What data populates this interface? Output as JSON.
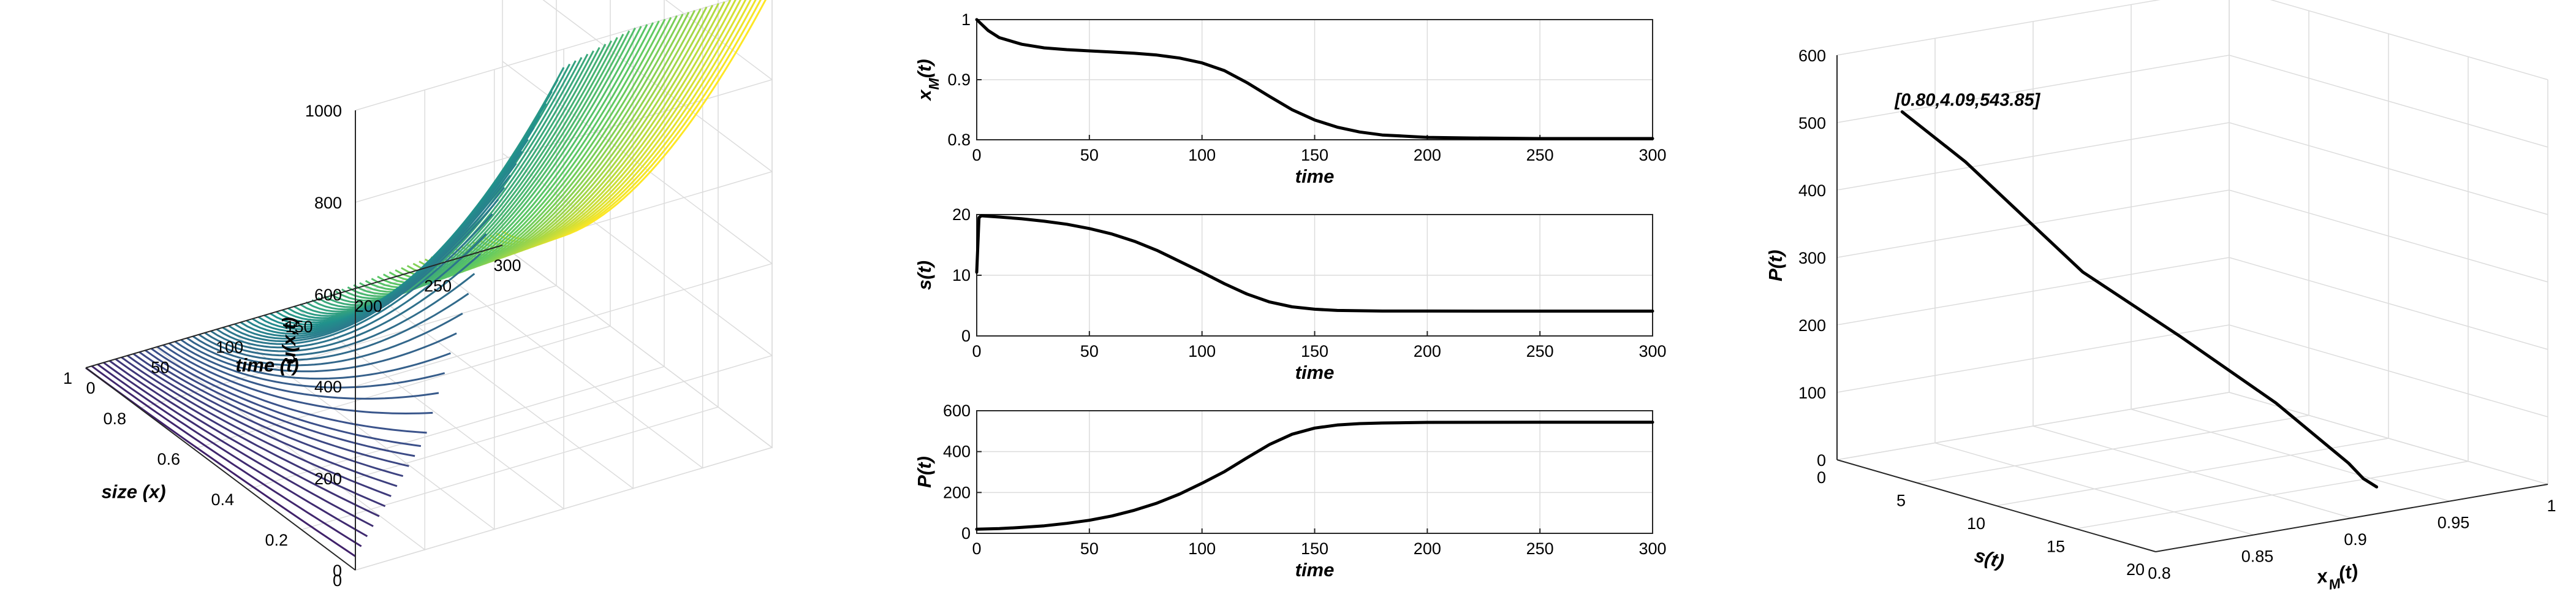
{
  "chart_data": [
    {
      "type": "surface",
      "xlabel": "size (x)",
      "ylabel": "time (t)",
      "zlabel": "u(x,t)",
      "x_ticks": [
        "0",
        "0.2",
        "0.4",
        "0.6",
        "0.8",
        "1"
      ],
      "y_ticks": [
        "0",
        "50",
        "100",
        "150",
        "200",
        "250",
        "300"
      ],
      "z_ticks": [
        "0",
        "200",
        "400",
        "600",
        "800",
        "1000"
      ],
      "xlim": [
        0,
        1
      ],
      "ylim": [
        0,
        300
      ],
      "zlim": [
        0,
        1000
      ],
      "grid": true,
      "colormap": [
        "#440154",
        "#3b528b",
        "#21918c",
        "#5ec962",
        "#fde725"
      ],
      "u_at_x0": {
        "t": [
          0,
          50,
          100,
          150,
          200,
          250,
          300
        ],
        "u": [
          30,
          240,
          700,
          960,
          1000,
          1000,
          1000
        ]
      },
      "u_at_x1": {
        "t": [
          0,
          50,
          100,
          150,
          200,
          250,
          300
        ],
        "u": [
          0,
          0,
          0,
          0,
          10,
          20,
          30
        ]
      }
    },
    {
      "type": "line",
      "xlabel": "time",
      "ylabel": "x_M(t)",
      "x_ticks": [
        "0",
        "50",
        "100",
        "150",
        "200",
        "250",
        "300"
      ],
      "y_ticks": [
        "0.8",
        "0.9",
        "1"
      ],
      "xlim": [
        0,
        300
      ],
      "ylim": [
        0.8,
        1
      ],
      "grid": true,
      "x": [
        0,
        5,
        10,
        20,
        30,
        40,
        50,
        60,
        70,
        80,
        90,
        100,
        110,
        120,
        130,
        140,
        150,
        160,
        170,
        180,
        190,
        200,
        220,
        250,
        300
      ],
      "y": [
        1.0,
        0.982,
        0.97,
        0.959,
        0.953,
        0.95,
        0.948,
        0.946,
        0.944,
        0.941,
        0.936,
        0.928,
        0.915,
        0.895,
        0.872,
        0.85,
        0.833,
        0.821,
        0.813,
        0.808,
        0.806,
        0.804,
        0.803,
        0.802,
        0.802
      ]
    },
    {
      "type": "line",
      "xlabel": "time",
      "ylabel": "s(t)",
      "x_ticks": [
        "0",
        "50",
        "100",
        "150",
        "200",
        "250",
        "300"
      ],
      "y_ticks": [
        "0",
        "10",
        "20"
      ],
      "xlim": [
        0,
        300
      ],
      "ylim": [
        0,
        20
      ],
      "grid": true,
      "x": [
        0,
        1,
        2,
        10,
        20,
        30,
        40,
        50,
        60,
        70,
        80,
        90,
        100,
        110,
        120,
        130,
        140,
        150,
        160,
        170,
        180,
        190,
        200,
        250,
        300
      ],
      "y": [
        10.5,
        19.5,
        19.8,
        19.6,
        19.3,
        18.9,
        18.4,
        17.7,
        16.8,
        15.6,
        14.1,
        12.3,
        10.5,
        8.6,
        6.9,
        5.6,
        4.8,
        4.4,
        4.2,
        4.15,
        4.1,
        4.1,
        4.1,
        4.09,
        4.09
      ]
    },
    {
      "type": "line",
      "xlabel": "time",
      "ylabel": "P(t)",
      "x_ticks": [
        "0",
        "50",
        "100",
        "150",
        "200",
        "250",
        "300"
      ],
      "y_ticks": [
        "0",
        "200",
        "400",
        "600"
      ],
      "xlim": [
        0,
        300
      ],
      "ylim": [
        0,
        600
      ],
      "grid": true,
      "x": [
        0,
        10,
        20,
        30,
        40,
        50,
        60,
        70,
        80,
        90,
        100,
        110,
        120,
        130,
        140,
        150,
        160,
        170,
        180,
        200,
        250,
        300
      ],
      "y": [
        20,
        23,
        29,
        37,
        49,
        64,
        85,
        113,
        148,
        192,
        245,
        302,
        370,
        435,
        485,
        515,
        530,
        537,
        540,
        543,
        543.8,
        543.85
      ]
    },
    {
      "type": "line3d",
      "xlabel": "x_M(t)",
      "ylabel": "s(t)",
      "zlabel": "P(t)",
      "x_ticks": [
        "0.8",
        "0.85",
        "0.9",
        "0.95",
        "1"
      ],
      "y_ticks": [
        "0",
        "5",
        "10",
        "15",
        "20"
      ],
      "z_ticks": [
        "0",
        "100",
        "200",
        "300",
        "400",
        "500",
        "600"
      ],
      "xlim": [
        0.8,
        1
      ],
      "ylim": [
        0,
        20
      ],
      "zlim": [
        0,
        600
      ],
      "grid": true,
      "annotation": "[0.80,4.09,543.85]",
      "x": [
        0.92,
        0.91,
        0.9,
        0.88,
        0.86,
        0.84,
        0.82,
        0.8
      ],
      "y": [
        19.1,
        19.5,
        19.8,
        17.7,
        14.1,
        10.5,
        5.6,
        4.09
      ],
      "z": [
        30,
        50,
        80,
        165,
        250,
        330,
        470,
        543.85
      ]
    }
  ]
}
